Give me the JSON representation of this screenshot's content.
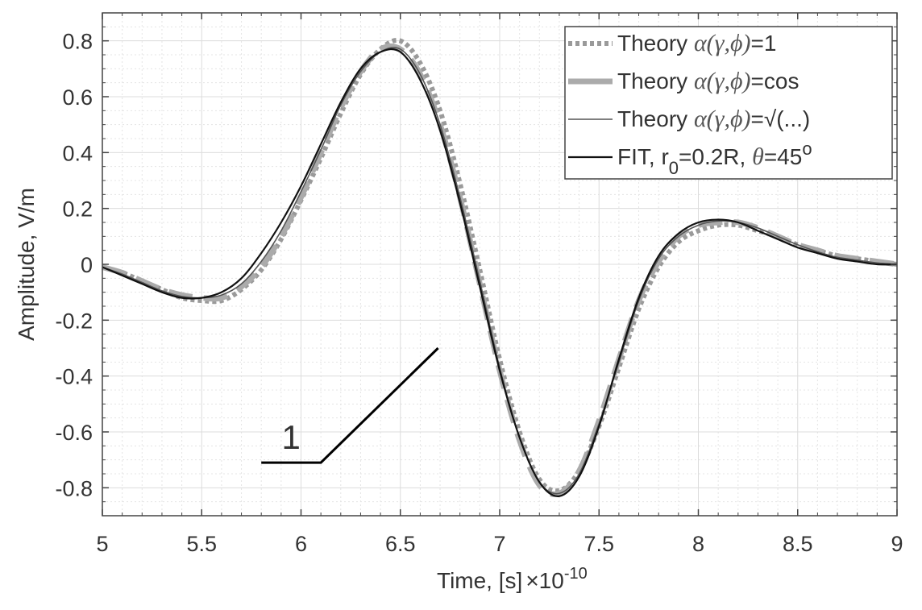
{
  "chart_data": {
    "type": "line",
    "title": "",
    "xlabel": "Time, [s]",
    "xlabel_multiplier": "×10",
    "xlabel_exponent": "-10",
    "ylabel": "Amplitude, V/m",
    "xlim": [
      5,
      9
    ],
    "ylim": [
      -0.9,
      0.9
    ],
    "grid": true,
    "minor_grid": true,
    "legend_placement": "top-right",
    "x_ticks": [
      "5",
      "5.5",
      "6",
      "6.5",
      "7",
      "7.5",
      "8",
      "8.5",
      "9"
    ],
    "y_ticks": [
      "-0.8",
      "-0.6",
      "-0.4",
      "-0.2",
      "0",
      "0.2",
      "0.4",
      "0.6",
      "0.8"
    ],
    "x": [
      5.0,
      5.1,
      5.2,
      5.3,
      5.4,
      5.5,
      5.6,
      5.7,
      5.8,
      5.9,
      6.0,
      6.1,
      6.2,
      6.3,
      6.4,
      6.5,
      6.6,
      6.7,
      6.8,
      6.9,
      7.0,
      7.1,
      7.2,
      7.3,
      7.4,
      7.5,
      7.6,
      7.7,
      7.8,
      7.9,
      8.0,
      8.1,
      8.2,
      8.3,
      8.4,
      8.5,
      8.6,
      8.7,
      8.8,
      8.9,
      9.0
    ],
    "series": [
      {
        "name": "Theory α(γ,ϕ)=1",
        "legend_prefix": "Theory ",
        "legend_math": "α(γ,ϕ)",
        "legend_suffix": "=1",
        "style": "dotted",
        "color": "#9a9a9a",
        "values": [
          -0.01,
          -0.03,
          -0.06,
          -0.09,
          -0.12,
          -0.13,
          -0.13,
          -0.09,
          -0.02,
          0.09,
          0.23,
          0.38,
          0.54,
          0.68,
          0.77,
          0.8,
          0.72,
          0.55,
          0.29,
          -0.02,
          -0.34,
          -0.6,
          -0.77,
          -0.81,
          -0.74,
          -0.58,
          -0.37,
          -0.16,
          -0.01,
          0.08,
          0.12,
          0.14,
          0.14,
          0.12,
          0.1,
          0.07,
          0.05,
          0.03,
          0.02,
          0.01,
          0.0
        ]
      },
      {
        "name": "Theory α(γ,ϕ)=cos",
        "legend_prefix": "Theory ",
        "legend_math": "α(γ,ϕ)",
        "legend_suffix": "=cos",
        "style": "dashed",
        "color": "#ababab",
        "values": [
          -0.01,
          -0.03,
          -0.06,
          -0.09,
          -0.11,
          -0.12,
          -0.12,
          -0.08,
          -0.01,
          0.1,
          0.24,
          0.4,
          0.56,
          0.69,
          0.77,
          0.77,
          0.68,
          0.5,
          0.24,
          -0.07,
          -0.38,
          -0.63,
          -0.79,
          -0.82,
          -0.74,
          -0.56,
          -0.34,
          -0.13,
          0.01,
          0.1,
          0.14,
          0.15,
          0.15,
          0.13,
          0.1,
          0.07,
          0.05,
          0.03,
          0.02,
          0.01,
          0.0
        ]
      },
      {
        "name": "Theory α(γ,ϕ)=√(...)",
        "legend_prefix": "Theory ",
        "legend_math": "α(γ,ϕ)",
        "legend_suffix": "=√(...)",
        "style": "solid-thin",
        "color": "#555555",
        "values": [
          -0.01,
          -0.035,
          -0.065,
          -0.095,
          -0.115,
          -0.12,
          -0.11,
          -0.07,
          0.01,
          0.12,
          0.26,
          0.41,
          0.57,
          0.69,
          0.76,
          0.77,
          0.68,
          0.5,
          0.24,
          -0.06,
          -0.37,
          -0.62,
          -0.78,
          -0.82,
          -0.75,
          -0.57,
          -0.35,
          -0.13,
          0.02,
          0.1,
          0.14,
          0.155,
          0.15,
          0.13,
          0.1,
          0.07,
          0.045,
          0.025,
          0.015,
          0.005,
          0.0
        ]
      },
      {
        "name": "FIT, r0=0.2R, θ=45o",
        "legend_prefix": "FIT, r",
        "legend_sub": "0",
        "legend_mid": "=0.2R, ",
        "legend_math": "θ",
        "legend_suffix": "=45",
        "legend_sup": "o",
        "style": "solid",
        "color": "#111111",
        "values": [
          -0.01,
          -0.04,
          -0.07,
          -0.1,
          -0.12,
          -0.12,
          -0.1,
          -0.05,
          0.04,
          0.15,
          0.28,
          0.43,
          0.58,
          0.7,
          0.76,
          0.76,
          0.66,
          0.48,
          0.22,
          -0.08,
          -0.38,
          -0.62,
          -0.78,
          -0.83,
          -0.76,
          -0.58,
          -0.34,
          -0.12,
          0.03,
          0.11,
          0.15,
          0.16,
          0.15,
          0.12,
          0.09,
          0.06,
          0.04,
          0.02,
          0.01,
          0.0,
          0.0
        ]
      }
    ],
    "annotation": {
      "label": "1",
      "label_at": [
        5.95,
        -0.62
      ],
      "polyline": [
        [
          5.8,
          -0.71
        ],
        [
          6.1,
          -0.71
        ],
        [
          6.69,
          -0.3
        ]
      ]
    }
  }
}
